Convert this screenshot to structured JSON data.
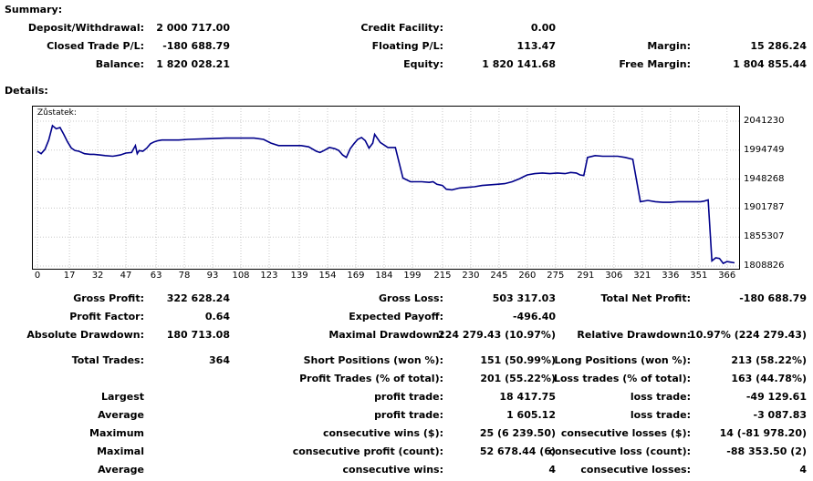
{
  "summary": {
    "title": "Summary:",
    "deposit_label": "Deposit/Withdrawal:",
    "deposit_value": "2 000 717.00",
    "credit_label": "Credit Facility:",
    "credit_value": "0.00",
    "closed_pl_label": "Closed Trade P/L:",
    "closed_pl_value": "-180 688.79",
    "floating_label": "Floating P/L:",
    "floating_value": "113.47",
    "margin_label": "Margin:",
    "margin_value": "15 286.24",
    "balance_label": "Balance:",
    "balance_value": "1 820 028.21",
    "equity_label": "Equity:",
    "equity_value": "1 820 141.68",
    "free_margin_label": "Free Margin:",
    "free_margin_value": "1 804 855.44"
  },
  "details": {
    "title": "Details:"
  },
  "chart_data": {
    "type": "line",
    "title": "Zůstatek:",
    "color": "#00008b",
    "grid": true,
    "x_ticks": [
      "0",
      "17",
      "32",
      "47",
      "63",
      "78",
      "93",
      "108",
      "123",
      "139",
      "154",
      "169",
      "184",
      "199",
      "215",
      "230",
      "245",
      "260",
      "275",
      "291",
      "306",
      "321",
      "336",
      "351",
      "366"
    ],
    "y_ticks": [
      "2041230",
      "1994749",
      "1948268",
      "1901787",
      "1855307",
      "1808826"
    ],
    "ylim": [
      1808826,
      2041230
    ],
    "xlim": [
      0,
      370
    ],
    "x": [
      0,
      2,
      4,
      6,
      8,
      10,
      12,
      14,
      16,
      18,
      20,
      22,
      25,
      28,
      30,
      33,
      36,
      40,
      44,
      47,
      50,
      52,
      53,
      54,
      56,
      58,
      60,
      62,
      64,
      66,
      70,
      75,
      80,
      90,
      100,
      108,
      115,
      120,
      124,
      128,
      132,
      136,
      140,
      144,
      148,
      150,
      152,
      155,
      158,
      160,
      162,
      164,
      166,
      168,
      170,
      172,
      174,
      176,
      178,
      179,
      182,
      186,
      190,
      194,
      198,
      200,
      204,
      208,
      210,
      212,
      215,
      217,
      220,
      224,
      228,
      232,
      236,
      240,
      244,
      248,
      252,
      256,
      258,
      260,
      264,
      268,
      272,
      276,
      280,
      283,
      286,
      288,
      290,
      292,
      296,
      300,
      304,
      306,
      308,
      312,
      316,
      320,
      324,
      328,
      332,
      336,
      340,
      344,
      348,
      350,
      352,
      354,
      356,
      358,
      360,
      362,
      364,
      366,
      368,
      370
    ],
    "y": [
      1993000,
      1989000,
      1996000,
      2011000,
      2034000,
      2029000,
      2031000,
      2020000,
      2008000,
      1998000,
      1994000,
      1993000,
      1989000,
      1988000,
      1988000,
      1987000,
      1986000,
      1985000,
      1987000,
      1990000,
      1991000,
      2002000,
      1989000,
      1994000,
      1993000,
      1998000,
      2005000,
      2008000,
      2010000,
      2011000,
      2011000,
      2011000,
      2012000,
      2013000,
      2014000,
      2014000,
      2014000,
      2012000,
      2006000,
      2002000,
      2002000,
      2002000,
      2002000,
      2000000,
      1993000,
      1991000,
      1994000,
      1999000,
      1997000,
      1994000,
      1987000,
      1983000,
      1997000,
      2005000,
      2012000,
      2015000,
      2010000,
      1998000,
      2006000,
      2020000,
      2007000,
      1999000,
      1999000,
      1950000,
      1944000,
      1944000,
      1944000,
      1943000,
      1944000,
      1940000,
      1938000,
      1932000,
      1931000,
      1934000,
      1935000,
      1936000,
      1938000,
      1939000,
      1940000,
      1941000,
      1944000,
      1949000,
      1952000,
      1955000,
      1957000,
      1958000,
      1957000,
      1958000,
      1957000,
      1959000,
      1958000,
      1955000,
      1954000,
      1983000,
      1986000,
      1985000,
      1985000,
      1985000,
      1985000,
      1983000,
      1980000,
      1912000,
      1914000,
      1912000,
      1911000,
      1911000,
      1912000,
      1912000,
      1912000,
      1912000,
      1912000,
      1913000,
      1915000,
      1817000,
      1822000,
      1821000,
      1813000,
      1816000,
      1815000,
      1814000
    ]
  },
  "stats": {
    "gross_profit_label": "Gross Profit:",
    "gross_profit_value": "322 628.24",
    "gross_loss_label": "Gross Loss:",
    "gross_loss_value": "503 317.03",
    "total_net_profit_label": "Total Net Profit:",
    "total_net_profit_value": "-180 688.79",
    "profit_factor_label": "Profit Factor:",
    "profit_factor_value": "0.64",
    "expected_payoff_label": "Expected Payoff:",
    "expected_payoff_value": "-496.40",
    "absolute_drawdown_label": "Absolute Drawdown:",
    "absolute_drawdown_value": "180 713.08",
    "maximal_drawdown_label": "Maximal Drawdown:",
    "maximal_drawdown_value": "224 279.43 (10.97%)",
    "relative_drawdown_label": "Relative Drawdown:",
    "relative_drawdown_value": "10.97% (224 279.43)",
    "total_trades_label": "Total Trades:",
    "total_trades_value": "364",
    "short_positions_label": "Short Positions (won %):",
    "short_positions_value": "151 (50.99%)",
    "long_positions_label": "Long Positions (won %):",
    "long_positions_value": "213 (58.22%)",
    "profit_trades_label": "Profit Trades (% of total):",
    "profit_trades_value": "201 (55.22%)",
    "loss_trades_label": "Loss trades (% of total):",
    "loss_trades_value": "163 (44.78%)",
    "largest_label": "Largest",
    "largest_profit_label": "profit trade:",
    "largest_profit_value": "18 417.75",
    "largest_loss_label": "loss trade:",
    "largest_loss_value": "-49 129.61",
    "average_label": "Average",
    "average_profit_label": "profit trade:",
    "average_profit_value": "1 605.12",
    "average_loss_label": "loss trade:",
    "average_loss_value": "-3 087.83",
    "maximum_label": "Maximum",
    "max_cons_wins_label": "consecutive wins ($):",
    "max_cons_wins_value": "25 (6 239.50)",
    "max_cons_losses_label": "consecutive losses ($):",
    "max_cons_losses_value": "14 (-81 978.20)",
    "maximal_label": "Maximal",
    "maximal_cons_profit_label": "consecutive profit (count):",
    "maximal_cons_profit_value": "52 678.44 (6)",
    "maximal_cons_loss_label": "consecutive loss (count):",
    "maximal_cons_loss_value": "-88 353.50 (2)",
    "average2_label": "Average",
    "avg_cons_wins_label": "consecutive wins:",
    "avg_cons_wins_value": "4",
    "avg_cons_losses_label": "consecutive losses:",
    "avg_cons_losses_value": "4"
  }
}
